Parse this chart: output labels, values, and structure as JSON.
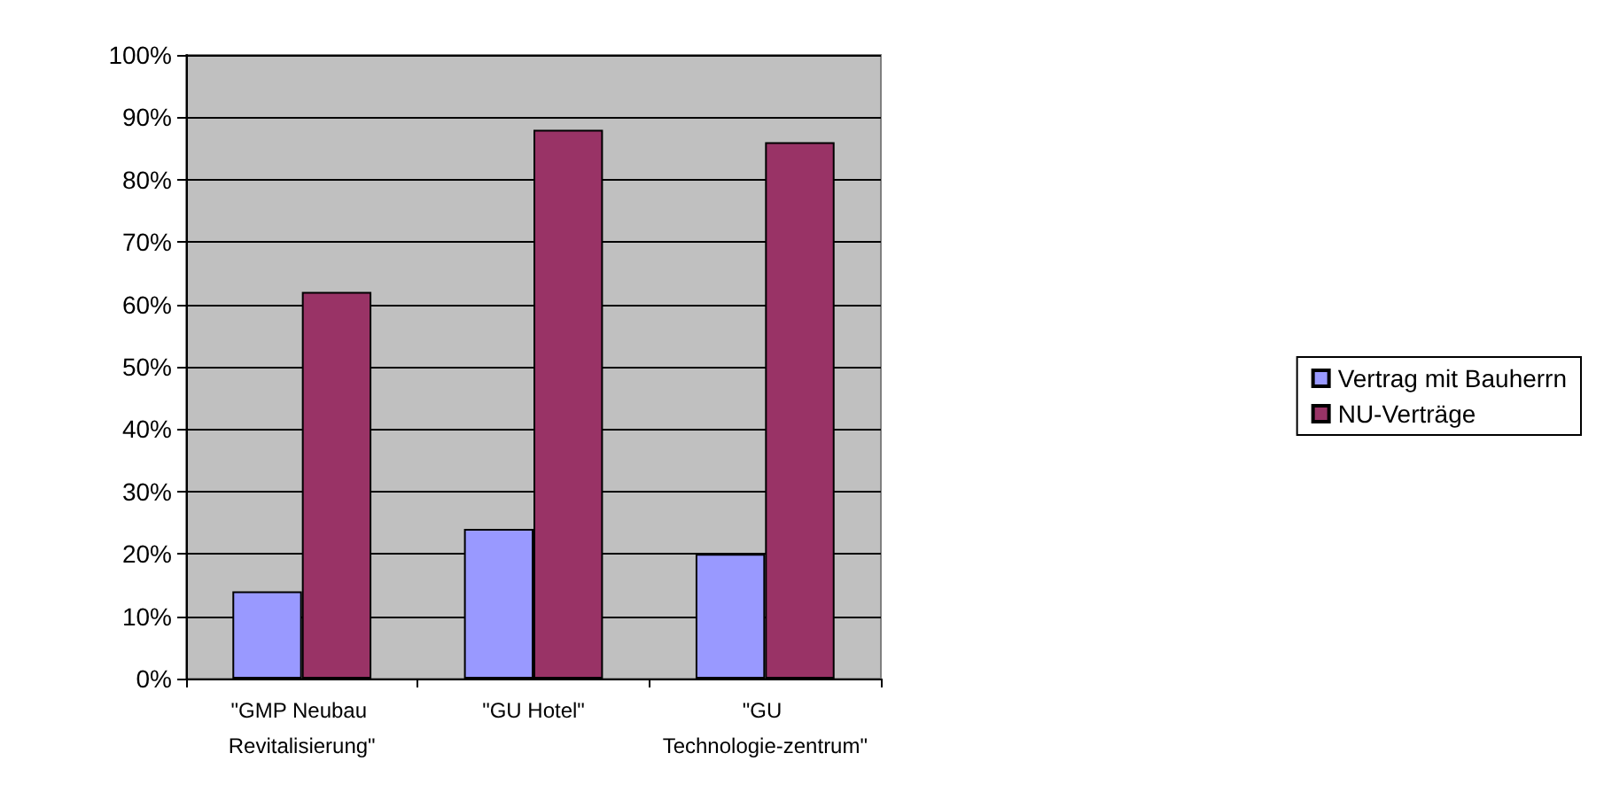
{
  "chart_data": {
    "type": "bar",
    "categories": [
      "\"GMP Neubau Revitalisierung\"",
      "\"GU Hotel\"",
      "\"GU Technologie-zentrum\""
    ],
    "series": [
      {
        "name": "Vertrag mit Bauherrn",
        "color": "#9999ff",
        "values": [
          14,
          24,
          20
        ]
      },
      {
        "name": "NU-Verträge",
        "color": "#993366",
        "values": [
          62,
          88,
          86
        ]
      }
    ],
    "ylim": [
      0,
      100
    ],
    "yticks": [
      {
        "value": 0,
        "label": "0%"
      },
      {
        "value": 10,
        "label": "10%"
      },
      {
        "value": 20,
        "label": "20%"
      },
      {
        "value": 30,
        "label": "30%"
      },
      {
        "value": 40,
        "label": "40%"
      },
      {
        "value": 50,
        "label": "50%"
      },
      {
        "value": 60,
        "label": "60%"
      },
      {
        "value": 70,
        "label": "70%"
      },
      {
        "value": 80,
        "label": "80%"
      },
      {
        "value": 90,
        "label": "90%"
      },
      {
        "value": 100,
        "label": "100%"
      }
    ],
    "grid": "y",
    "legend": "right"
  }
}
